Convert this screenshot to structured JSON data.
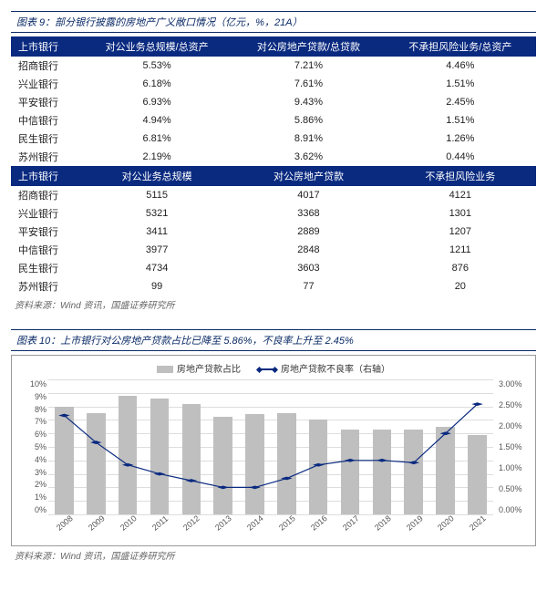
{
  "fig9": {
    "caption": "图表 9：部分银行披露的房地产广义敞口情况（亿元，%，21A）",
    "header1": [
      "上市银行",
      "对公业务总规模/总资产",
      "对公房地产贷款/总贷款",
      "不承担风险业务/总资产"
    ],
    "rows1": [
      {
        "bank": "招商银行",
        "c1": "5.53%",
        "c2": "7.21%",
        "c3": "4.46%"
      },
      {
        "bank": "兴业银行",
        "c1": "6.18%",
        "c2": "7.61%",
        "c3": "1.51%"
      },
      {
        "bank": "平安银行",
        "c1": "6.93%",
        "c2": "9.43%",
        "c3": "2.45%"
      },
      {
        "bank": "中信银行",
        "c1": "4.94%",
        "c2": "5.86%",
        "c3": "1.51%"
      },
      {
        "bank": "民生银行",
        "c1": "6.81%",
        "c2": "8.91%",
        "c3": "1.26%"
      },
      {
        "bank": "苏州银行",
        "c1": "2.19%",
        "c2": "3.62%",
        "c3": "0.44%"
      }
    ],
    "header2": [
      "上市银行",
      "对公业务总规模",
      "对公房地产贷款",
      "不承担风险业务"
    ],
    "rows2": [
      {
        "bank": "招商银行",
        "c1": "5115",
        "c2": "4017",
        "c3": "4121"
      },
      {
        "bank": "兴业银行",
        "c1": "5321",
        "c2": "3368",
        "c3": "1301"
      },
      {
        "bank": "平安银行",
        "c1": "3411",
        "c2": "2889",
        "c3": "1207"
      },
      {
        "bank": "中信银行",
        "c1": "3977",
        "c2": "2848",
        "c3": "1211"
      },
      {
        "bank": "民生银行",
        "c1": "4734",
        "c2": "3603",
        "c3": "876"
      },
      {
        "bank": "苏州银行",
        "c1": "99",
        "c2": "77",
        "c3": "20"
      }
    ],
    "source": "资料来源：Wind 资讯，国盛证券研究所"
  },
  "fig10": {
    "caption": "图表 10：上市银行对公房地产贷款占比已降至 5.86%，不良率上升至 2.45%",
    "legend": {
      "bar": "房地产贷款占比",
      "line": "房地产贷款不良率（右轴）"
    },
    "years": [
      "2008",
      "2009",
      "2010",
      "2011",
      "2012",
      "2013",
      "2014",
      "2015",
      "2016",
      "2017",
      "2018",
      "2019",
      "2020",
      "2021"
    ],
    "bars_pct": [
      8.0,
      7.5,
      8.8,
      8.6,
      8.2,
      7.2,
      7.4,
      7.5,
      7.0,
      6.3,
      6.3,
      6.3,
      6.5,
      5.9
    ],
    "line_pct": [
      2.2,
      1.6,
      1.1,
      0.9,
      0.75,
      0.6,
      0.6,
      0.8,
      1.1,
      1.2,
      1.2,
      1.15,
      1.8,
      2.45
    ],
    "bar_color": "#bfbfbf",
    "line_color": "#0a2a80",
    "grid_color": "#dddddd",
    "y_left": {
      "max": 10,
      "step": 1,
      "labels": [
        "10%",
        "9%",
        "8%",
        "7%",
        "6%",
        "5%",
        "4%",
        "3%",
        "2%",
        "1%",
        "0%"
      ]
    },
    "y_right": {
      "max": 3,
      "step": 0.5,
      "labels": [
        "3.00%",
        "2.50%",
        "2.00%",
        "1.50%",
        "1.00%",
        "0.50%",
        "0.00%"
      ]
    },
    "source": "资料来源：Wind 资讯，国盛证券研究所"
  }
}
